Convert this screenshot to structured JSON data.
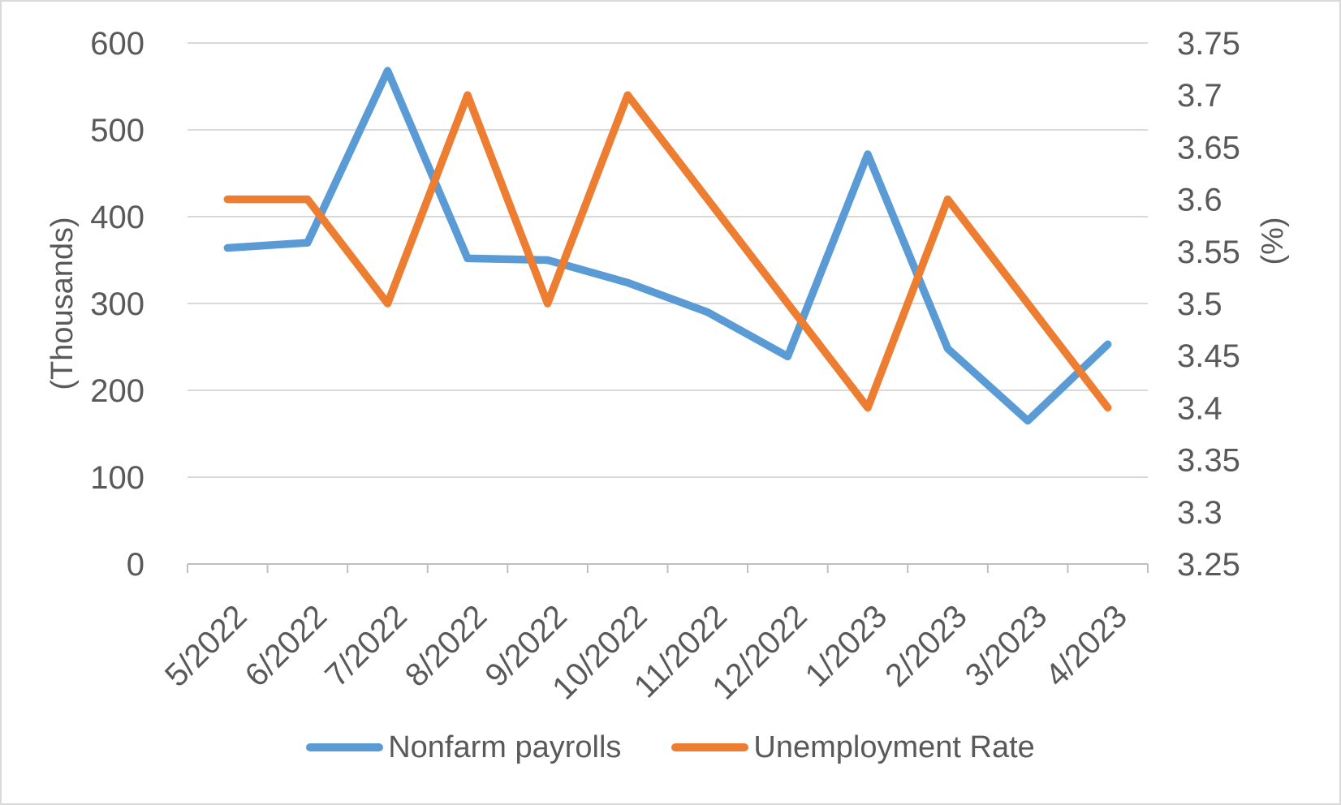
{
  "chart_data": {
    "type": "line",
    "categories": [
      "5/2022",
      "6/2022",
      "7/2022",
      "8/2022",
      "9/2022",
      "10/2022",
      "11/2022",
      "12/2022",
      "1/2023",
      "2/2023",
      "3/2023",
      "4/2023"
    ],
    "series": [
      {
        "name": "Nonfarm payrolls",
        "axis": "left",
        "color": "#5B9BD5",
        "values": [
          364,
          370,
          568,
          352,
          350,
          324,
          290,
          239,
          472,
          248,
          165,
          253
        ]
      },
      {
        "name": "Unemployment Rate",
        "axis": "right",
        "color": "#ED7D31",
        "values": [
          3.6,
          3.6,
          3.5,
          3.7,
          3.5,
          3.7,
          3.6,
          3.5,
          3.4,
          3.6,
          3.5,
          3.4
        ]
      }
    ],
    "left_axis": {
      "title": "(Thousands)",
      "min": 0,
      "max": 600,
      "tick_labels": [
        "0",
        "100",
        "200",
        "300",
        "400",
        "500",
        "600"
      ]
    },
    "right_axis": {
      "title": "(%)",
      "min": 3.25,
      "max": 3.75,
      "tick_labels": [
        "3.25",
        "3.3",
        "3.35",
        "3.4",
        "3.45",
        "3.5",
        "3.55",
        "3.6",
        "3.65",
        "3.7",
        "3.75"
      ]
    },
    "legend_position": "bottom",
    "grid": true,
    "styles": {
      "gridline_color": "#D9D9D9",
      "axis_line_color": "#BFBFBF",
      "text_color": "#595959",
      "background": "#FFFFFF",
      "border_color": "#D9D9D9"
    }
  }
}
